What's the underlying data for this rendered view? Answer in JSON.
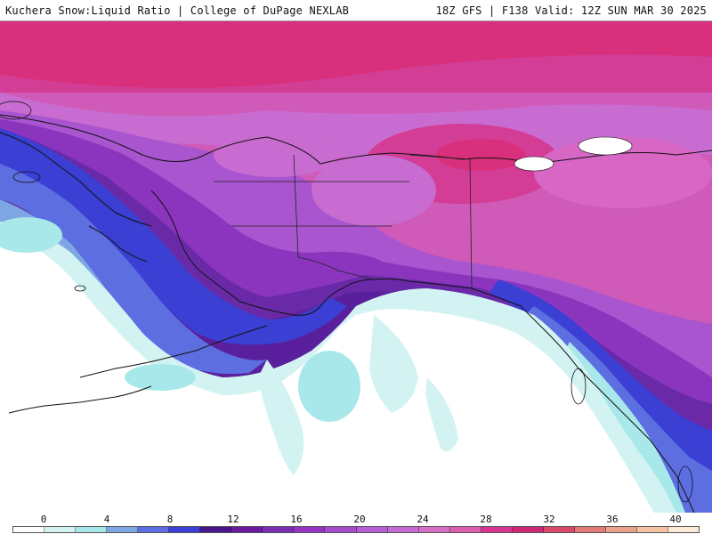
{
  "header": {
    "title_left": "Kuchera Snow:Liquid Ratio | College of DuPage NEXLAB",
    "title_right": "18Z GFS | F138 Valid: 12Z SUN MAR 30 2025"
  },
  "colorbar": {
    "tick_labels": [
      "0",
      "4",
      "8",
      "12",
      "16",
      "20",
      "24",
      "28",
      "32",
      "36",
      "40"
    ],
    "bin_colors": [
      "#ffffff",
      "#d3f3f3",
      "#a8e8ea",
      "#7da6e3",
      "#5d6fe0",
      "#3b3fd3",
      "#4a148c",
      "#6a1aa0",
      "#7b2fb3",
      "#9433c4",
      "#a54bcc",
      "#b35ed3",
      "#c46ad2",
      "#d56fc6",
      "#dd5fae",
      "#d7358f",
      "#cc2873",
      "#d94a6a",
      "#e27a7a",
      "#eba28a",
      "#f3c3a3",
      "#faead6"
    ]
  },
  "map": {
    "region": "Alaska, Canada, North Pacific",
    "colors": {
      "ocean_low": "#ffffff",
      "pale_cyan": "#d3f3f3",
      "cyan": "#a8e8ea",
      "light_blue": "#7da6e3",
      "blue": "#5d6fe0",
      "dark_blue": "#3b3fd3",
      "deep_purple": "#5a1f9c",
      "purple": "#8b35bf",
      "violet": "#a855cf",
      "orchid": "#c86cd1",
      "pink": "#d766c4",
      "magenta": "#d33d96",
      "hot_magenta": "#d8307c"
    }
  }
}
